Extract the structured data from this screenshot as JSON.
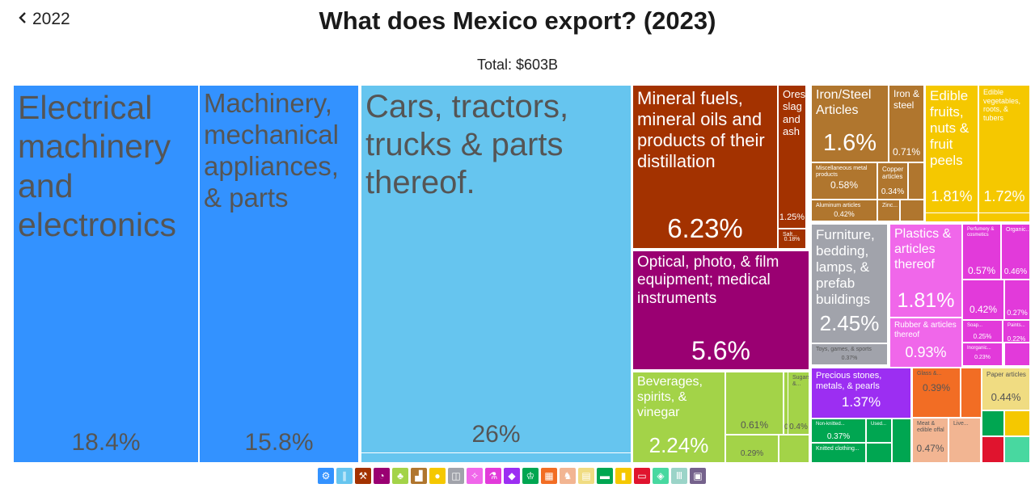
{
  "nav": {
    "back_label": "2022",
    "back_icon": "chevron-left-icon"
  },
  "header": {
    "title": "What does Mexico export? (2023)",
    "subtitle": "Total: $603B"
  },
  "chart_data": {
    "type": "treemap",
    "title": "What does Mexico export? (2023)",
    "subtitle": "Total: $603B",
    "items": [
      {
        "label": "Electrical machinery and electronics",
        "value": "18.4%",
        "color": "#3392ff"
      },
      {
        "label": "Machinery, mechanical appliances, & parts",
        "value": "15.8%",
        "color": "#3392ff"
      },
      {
        "label": "Cars, tractors, trucks & parts thereof.",
        "value": "26%",
        "color": "#66c5ef"
      },
      {
        "label": "Mineral fuels, mineral oils and products of their distillation",
        "value": "6.23%",
        "color": "#a33200"
      },
      {
        "label": "Ores, slag and ash",
        "value": "1.25%",
        "color": "#a33200"
      },
      {
        "label": "Salt...",
        "value": "0.18%",
        "color": "#a33200"
      },
      {
        "label": "Iron/Steel Articles",
        "value": "1.6%",
        "color": "#b0762e"
      },
      {
        "label": "Iron & steel",
        "value": "0.71%",
        "color": "#b0762e"
      },
      {
        "label": "Miscellaneous metal products",
        "value": "0.58%",
        "color": "#b0762e"
      },
      {
        "label": "Copper articles",
        "value": "0.34%",
        "color": "#b0762e"
      },
      {
        "label": "Aluminum articles",
        "value": "0.42%",
        "color": "#b0762e"
      },
      {
        "label": "Zinc...",
        "value": "",
        "color": "#b0762e"
      },
      {
        "label": "Edible fruits, nuts & fruit peels",
        "value": "1.81%",
        "color": "#f5c800"
      },
      {
        "label": "Edible vegetables, roots, & tubers",
        "value": "1.72%",
        "color": "#f5c800"
      },
      {
        "label": "Optical, photo, & film equipment; medical instruments",
        "value": "5.6%",
        "color": "#9a0072"
      },
      {
        "label": "Furniture, bedding, lamps, & prefab buildings",
        "value": "2.45%",
        "color": "#a1a3ab"
      },
      {
        "label": "Toys, games, & sports",
        "value": "0.37%",
        "color": "#a1a3ab"
      },
      {
        "label": "Plastics & articles thereof",
        "value": "1.81%",
        "color": "#f067ea"
      },
      {
        "label": "Perfumery & cosmetics",
        "value": "0.57%",
        "color": "#e23ada"
      },
      {
        "label": "Organic...",
        "value": "0.46%",
        "color": "#e23ada"
      },
      {
        "label": "",
        "value": "0.42%",
        "color": "#e23ada"
      },
      {
        "label": "",
        "value": "0.27%",
        "color": "#e23ada"
      },
      {
        "label": "Rubber & articles thereof",
        "value": "0.93%",
        "color": "#f067ea"
      },
      {
        "label": "Soap...",
        "value": "0.25%",
        "color": "#e23ada"
      },
      {
        "label": "Paints...",
        "value": "0.22%",
        "color": "#e23ada"
      },
      {
        "label": "Inorganic...",
        "value": "0.23%",
        "color": "#e23ada"
      },
      {
        "label": "Beverages, spirits, & vinegar",
        "value": "2.24%",
        "color": "#a3d348"
      },
      {
        "label": "",
        "value": "0.61%",
        "color": "#a3d348"
      },
      {
        "label": "",
        "value": "0.43%",
        "color": "#a3d348"
      },
      {
        "label": "Sugars &...",
        "value": "0.4%",
        "color": "#a3d348"
      },
      {
        "label": "",
        "value": "0.29%",
        "color": "#a3d348"
      },
      {
        "label": "Precious stones, metals, & pearls",
        "value": "1.37%",
        "color": "#9c2ef2"
      },
      {
        "label": "Non-knitted...",
        "value": "0.37%",
        "color": "#00a651"
      },
      {
        "label": "Used...",
        "value": "0.23%",
        "color": "#00a651"
      },
      {
        "label": "Knitted clothing...",
        "value": "",
        "color": "#00a651"
      },
      {
        "label": "Glass &...",
        "value": "0.39%",
        "color": "#f26d24"
      },
      {
        "label": "Meat & edible offal",
        "value": "0.47%",
        "color": "#f2b592"
      },
      {
        "label": "Live...",
        "value": "",
        "color": "#f2b592"
      },
      {
        "label": "Paper articles",
        "value": "0.44%",
        "color": "#f0dc82"
      }
    ]
  },
  "legend": {
    "items": [
      {
        "icon": "gear-icon",
        "glyph": "⚙",
        "color": "#3392ff"
      },
      {
        "icon": "road-icon",
        "glyph": "∥",
        "color": "#66c5ef"
      },
      {
        "icon": "pickaxe-icon",
        "glyph": "⚒",
        "color": "#a33200"
      },
      {
        "icon": "gauge-icon",
        "glyph": "◔",
        "color": "#9a0072"
      },
      {
        "icon": "leaf-icon",
        "glyph": "♣",
        "color": "#a3d348"
      },
      {
        "icon": "anvil-icon",
        "glyph": "▟",
        "color": "#b0762e"
      },
      {
        "icon": "fruit-icon",
        "glyph": "●",
        "color": "#f5c800"
      },
      {
        "icon": "box-icon",
        "glyph": "◫",
        "color": "#a1a3ab"
      },
      {
        "icon": "chemical-icon",
        "glyph": "✧",
        "color": "#f067ea"
      },
      {
        "icon": "flask-icon",
        "glyph": "⚗",
        "color": "#e23ada"
      },
      {
        "icon": "gem-icon",
        "glyph": "◆",
        "color": "#9c2ef2"
      },
      {
        "icon": "shirt-icon",
        "glyph": "♔",
        "color": "#00a651"
      },
      {
        "icon": "brick-icon",
        "glyph": "▦",
        "color": "#f26d24"
      },
      {
        "icon": "animal-icon",
        "glyph": "♞",
        "color": "#f2b592"
      },
      {
        "icon": "paper-icon",
        "glyph": "▤",
        "color": "#f0dc82"
      },
      {
        "icon": "shoe-icon",
        "glyph": "▬",
        "color": "#00a651"
      },
      {
        "icon": "canister-icon",
        "glyph": "▮",
        "color": "#f5c800"
      },
      {
        "icon": "wallet-icon",
        "glyph": "▭",
        "color": "#e0142e"
      },
      {
        "icon": "hide-icon",
        "glyph": "◈",
        "color": "#48d8a0"
      },
      {
        "icon": "pillars-icon",
        "glyph": "Ⅲ",
        "color": "#9bd4c8"
      },
      {
        "icon": "frame-icon",
        "glyph": "▣",
        "color": "#75628c"
      }
    ]
  }
}
